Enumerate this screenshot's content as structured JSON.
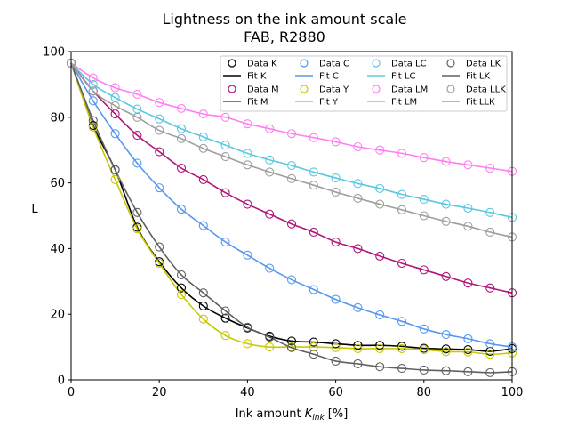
{
  "chart_data": {
    "type": "line",
    "title": "Lightness on the ink amount scale",
    "subtitle": "FAB, R2880",
    "xlabel": "Ink amount K_ink [%]",
    "xlabel_parts": {
      "prefix": "Ink amount ",
      "var": "K",
      "sub": "ink",
      "suffix": " [%]"
    },
    "ylabel": "L",
    "xlim": [
      0,
      100
    ],
    "ylim": [
      0,
      100
    ],
    "xticks": [
      0,
      20,
      40,
      60,
      80,
      100
    ],
    "yticks": [
      0,
      20,
      40,
      60,
      80,
      100
    ],
    "grid": false,
    "legend_position": "top-right",
    "legend_columns": 4,
    "x": [
      0,
      5,
      10,
      15,
      20,
      25,
      30,
      35,
      40,
      45,
      50,
      55,
      60,
      65,
      70,
      75,
      80,
      85,
      90,
      95,
      100
    ],
    "series": [
      {
        "name": "K",
        "color": "#000000",
        "data_label": "Data K",
        "fit_label": "Fit K",
        "values": [
          96.5,
          77.5,
          64,
          46.5,
          36,
          28,
          22.5,
          18.8,
          15.8,
          13.3,
          11.8,
          11.5,
          11,
          10.5,
          10.5,
          10.2,
          9.6,
          9.4,
          9.2,
          8.7,
          9.5
        ]
      },
      {
        "name": "C",
        "color": "#5599ee",
        "data_label": "Data C",
        "fit_label": "Fit C",
        "values": [
          96.5,
          85,
          75,
          66,
          58.5,
          52,
          47,
          42,
          38,
          34,
          30.5,
          27.5,
          24.5,
          22,
          19.8,
          17.8,
          15.5,
          13.8,
          12.5,
          11,
          10
        ]
      },
      {
        "name": "M",
        "color": "#b0147a",
        "data_label": "Data M",
        "fit_label": "Fit M",
        "values": [
          96.5,
          88,
          81,
          74.5,
          69.5,
          64.5,
          61,
          57,
          53.5,
          50.5,
          47.5,
          45,
          42,
          40,
          37.7,
          35.5,
          33.5,
          31.5,
          29.5,
          28,
          26.5
        ]
      },
      {
        "name": "Y",
        "color": "#c8c800",
        "data_label": "Data Y",
        "fit_label": "Fit Y",
        "values": [
          96.5,
          77,
          61,
          46,
          35.5,
          26,
          18.5,
          13.5,
          11,
          10,
          10,
          10,
          9.8,
          9.5,
          9.5,
          9.5,
          9.2,
          8.6,
          8.5,
          7.8,
          8.2
        ]
      },
      {
        "name": "LC",
        "color": "#5bc8e0",
        "data_label": "Data LC",
        "fit_label": "Fit LC",
        "values": [
          96.5,
          90,
          86,
          82.5,
          79.5,
          76.5,
          74,
          71.5,
          69,
          67,
          65.3,
          63.3,
          61.5,
          59.8,
          58.3,
          56.5,
          55,
          53.5,
          52.3,
          51,
          49.5
        ]
      },
      {
        "name": "LM",
        "color": "#ff7ff0",
        "data_label": "Data LM",
        "fit_label": "Fit LM",
        "values": [
          96.5,
          92,
          89,
          87,
          84.5,
          82.7,
          81,
          80,
          78,
          76.5,
          75,
          73.8,
          72.5,
          71,
          70,
          69,
          67.7,
          66.5,
          65.5,
          64.5,
          63.5
        ]
      },
      {
        "name": "LK",
        "color": "#606060",
        "data_label": "Data LK",
        "fit_label": "Fit LK",
        "values": [
          96.5,
          79,
          64,
          51,
          40.5,
          32,
          26.5,
          21,
          16,
          13,
          9.8,
          7.8,
          5.7,
          4.9,
          4,
          3.5,
          3,
          2.8,
          2.5,
          2.2,
          2.5
        ]
      },
      {
        "name": "LLK",
        "color": "#9e9e9e",
        "data_label": "Data LLK",
        "fit_label": "Fit LLK",
        "values": [
          96.5,
          88,
          83.5,
          80,
          76,
          73.5,
          70.5,
          68,
          65.5,
          63.3,
          61.3,
          59.3,
          57.2,
          55.3,
          53.5,
          51.8,
          50,
          48.3,
          46.8,
          45,
          43.5
        ]
      }
    ],
    "legend_order": [
      0,
      1,
      4,
      6,
      2,
      3,
      5,
      7
    ]
  }
}
